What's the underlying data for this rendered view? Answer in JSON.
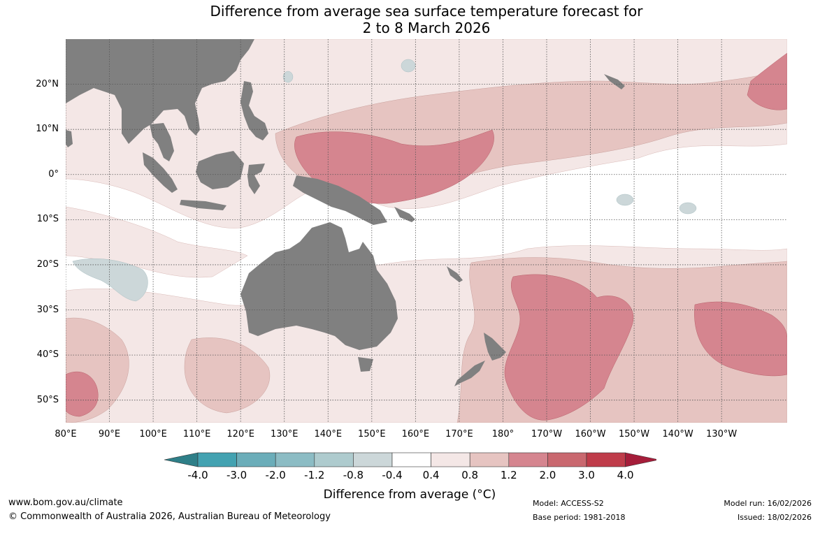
{
  "title": {
    "line1": "Difference from average sea surface temperature forecast for",
    "line2": "2 to 8 March 2026"
  },
  "map": {
    "lon_range_deg": [
      80,
      245
    ],
    "lat_range_deg": [
      -55,
      30
    ],
    "lat_ticks": [
      {
        "value": 20,
        "label": "20°N"
      },
      {
        "value": 10,
        "label": "10°N"
      },
      {
        "value": 0,
        "label": "0°"
      },
      {
        "value": -10,
        "label": "10°S"
      },
      {
        "value": -20,
        "label": "20°S"
      },
      {
        "value": -30,
        "label": "30°S"
      },
      {
        "value": -40,
        "label": "40°S"
      },
      {
        "value": -50,
        "label": "50°S"
      }
    ],
    "lon_ticks": [
      {
        "value": 80,
        "label": "80°E"
      },
      {
        "value": 90,
        "label": "90°E"
      },
      {
        "value": 100,
        "label": "100°E"
      },
      {
        "value": 110,
        "label": "110°E"
      },
      {
        "value": 120,
        "label": "120°E"
      },
      {
        "value": 130,
        "label": "130°E"
      },
      {
        "value": 140,
        "label": "140°E"
      },
      {
        "value": 150,
        "label": "150°E"
      },
      {
        "value": 160,
        "label": "160°E"
      },
      {
        "value": 170,
        "label": "170°E"
      },
      {
        "value": 180,
        "label": "180°"
      },
      {
        "value": 190,
        "label": "170°W"
      },
      {
        "value": 200,
        "label": "160°W"
      },
      {
        "value": 210,
        "label": "150°W"
      },
      {
        "value": 220,
        "label": "140°W"
      },
      {
        "value": 230,
        "label": "130°W"
      }
    ],
    "land_color": "#808080",
    "grid_color": "#555555"
  },
  "colorbar": {
    "ticks": [
      "-4.0",
      "-3.0",
      "-2.0",
      "-1.2",
      "-0.8",
      "-0.4",
      "0.4",
      "0.8",
      "1.2",
      "2.0",
      "3.0",
      "4.0"
    ],
    "below_color": "#2e7f88",
    "colors": [
      "#43a2b1",
      "#6badb9",
      "#8cbcc4",
      "#aecbce",
      "#ccd7d9",
      "#ffffff",
      "#f4e7e6",
      "#e6c4c1",
      "#d5858f",
      "#c9686f",
      "#bf3c4a"
    ],
    "above_color": "#a51d3a",
    "label": "Difference from average (°C)"
  },
  "footer": {
    "url": "www.bom.gov.au/climate",
    "copyright": "© Commonwealth of Australia 2026, Australian Bureau of Meteorology",
    "model": "Model: ACCESS-S2",
    "base_period": "Base period: 1981-2018",
    "model_run": "Model run: 16/02/2026",
    "issued": "Issued: 18/02/2026"
  }
}
